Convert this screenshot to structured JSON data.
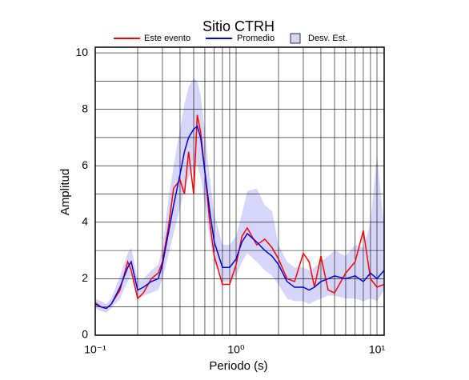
{
  "chart_data": {
    "type": "line",
    "title": "Sitio CTRH",
    "x_label": "Periodo (s)",
    "y_label": "Amplitud",
    "log_x": true,
    "grid": true,
    "xlim": [
      0.1,
      11.25
    ],
    "ylim": [
      0,
      10.2
    ],
    "xticks": [
      {
        "value": 0.1,
        "label": "10⁻¹"
      },
      {
        "value": 1,
        "label": "10⁰"
      },
      {
        "value": 10,
        "label": "10¹"
      }
    ],
    "minor_xticks": [
      0.2,
      0.3,
      0.4,
      0.5,
      0.6,
      0.7,
      0.8,
      0.9,
      2,
      3,
      4,
      5,
      6,
      7,
      8,
      9
    ],
    "yticks": [
      0,
      2,
      4,
      6,
      8,
      10
    ],
    "minor_yticks": [
      1,
      3,
      5,
      7,
      9
    ],
    "x": [
      0.1,
      0.11,
      0.12,
      0.13,
      0.15,
      0.17,
      0.18,
      0.2,
      0.22,
      0.25,
      0.28,
      0.3,
      0.33,
      0.36,
      0.4,
      0.43,
      0.46,
      0.5,
      0.53,
      0.56,
      0.6,
      0.65,
      0.7,
      0.8,
      0.9,
      1.0,
      1.1,
      1.2,
      1.4,
      1.6,
      1.8,
      2.0,
      2.3,
      2.6,
      3.0,
      3.3,
      3.6,
      4.0,
      4.5,
      5.0,
      6.0,
      7.0,
      8.0,
      9.0,
      10.0,
      11.25
    ],
    "band": {
      "name": "Desv. Est.",
      "color": "#d6d6fa",
      "lower": [
        0.95,
        0.85,
        0.8,
        0.95,
        1.3,
        1.9,
        2.1,
        1.3,
        1.4,
        1.5,
        1.6,
        2.0,
        2.8,
        3.6,
        4.5,
        5.2,
        5.6,
        5.9,
        6.0,
        5.6,
        4.6,
        3.4,
        2.6,
        1.9,
        1.9,
        2.1,
        2.6,
        2.9,
        2.6,
        2.3,
        2.1,
        1.8,
        1.3,
        1.2,
        1.2,
        1.1,
        1.2,
        1.3,
        1.4,
        1.4,
        1.3,
        1.3,
        1.2,
        1.3,
        1.2,
        1.6
      ],
      "upper": [
        1.3,
        1.2,
        1.1,
        1.3,
        2.1,
        2.9,
        3.1,
        2.0,
        2.0,
        2.3,
        2.5,
        3.1,
        4.8,
        6.0,
        7.3,
        8.2,
        8.8,
        9.1,
        9.0,
        8.5,
        7.2,
        5.6,
        4.3,
        3.2,
        3.2,
        3.5,
        4.3,
        5.1,
        5.2,
        4.6,
        4.4,
        3.2,
        2.6,
        2.4,
        2.4,
        2.3,
        2.4,
        2.6,
        2.8,
        3.0,
        2.8,
        3.2,
        3.1,
        4.0,
        6.4,
        3.8
      ]
    },
    "series": [
      {
        "name": "Este evento",
        "color": "#ff0000",
        "values": [
          1.15,
          1.0,
          0.95,
          1.1,
          1.6,
          2.6,
          2.3,
          1.3,
          1.5,
          2.0,
          2.2,
          2.6,
          3.8,
          5.2,
          5.5,
          5.0,
          6.5,
          5.0,
          7.8,
          7.2,
          5.8,
          4.0,
          2.8,
          1.8,
          1.8,
          2.5,
          3.5,
          3.8,
          3.2,
          3.4,
          3.1,
          2.7,
          2.0,
          1.9,
          2.9,
          2.6,
          1.7,
          2.8,
          1.6,
          1.5,
          2.2,
          2.6,
          3.7,
          2.0,
          1.7,
          1.8
        ]
      },
      {
        "name": "Promedio",
        "color": "#0000dd",
        "values": [
          1.1,
          1.0,
          0.95,
          1.1,
          1.7,
          2.4,
          2.6,
          1.6,
          1.7,
          1.9,
          2.0,
          2.5,
          3.6,
          4.6,
          5.7,
          6.5,
          7.0,
          7.3,
          7.4,
          7.0,
          5.8,
          4.4,
          3.3,
          2.4,
          2.4,
          2.7,
          3.3,
          3.6,
          3.3,
          3.0,
          2.8,
          2.5,
          1.9,
          1.7,
          1.7,
          1.6,
          1.7,
          1.9,
          2.0,
          2.1,
          2.0,
          2.1,
          1.9,
          2.2,
          2.0,
          2.3
        ]
      }
    ]
  }
}
